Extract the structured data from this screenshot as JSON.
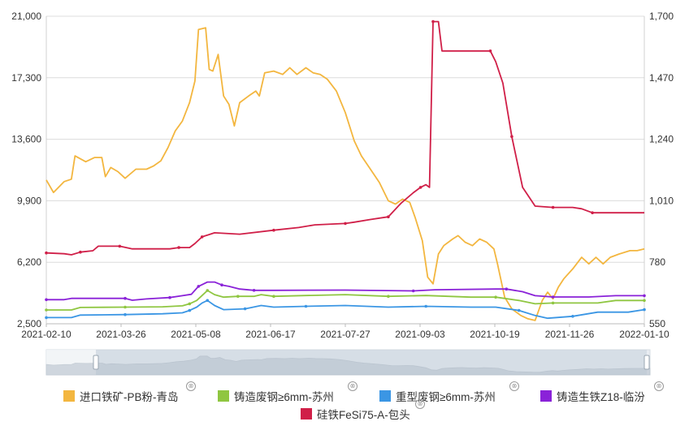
{
  "chart_data": {
    "type": "line",
    "title": "",
    "xlabel": "",
    "x_tick_labels": [
      "2021-02-10",
      "2021-03-26",
      "2021-05-08",
      "2021-06-17",
      "2021-07-27",
      "2021-09-03",
      "2021-10-19",
      "2021-11-26",
      "2022-01-10"
    ],
    "x_range": [
      "2021-02-10",
      "2022-01-10"
    ],
    "y_left": {
      "ylim": [
        2500,
        21000
      ],
      "ticks": [
        "2,500",
        "6,200",
        "9,900",
        "13,600",
        "17,300",
        "21,000"
      ]
    },
    "y_right": {
      "ylim": [
        550,
        1700
      ],
      "ticks": [
        "550",
        "780",
        "1,010",
        "1,240",
        "1,470",
        "1,700"
      ]
    },
    "grid": "horizontal",
    "legend_position": "bottom",
    "series": [
      {
        "name": "进口铁矿-PB粉-青岛",
        "color": "#f3b63f",
        "axis": "left",
        "points": [
          [
            "2021-02-10",
            11150
          ],
          [
            "2021-02-14",
            10400
          ],
          [
            "2021-02-20",
            11050
          ],
          [
            "2021-02-24",
            11200
          ],
          [
            "2021-02-26",
            12600
          ],
          [
            "2021-03-04",
            12250
          ],
          [
            "2021-03-09",
            12500
          ],
          [
            "2021-03-13",
            12500
          ],
          [
            "2021-03-15",
            11350
          ],
          [
            "2021-03-18",
            11900
          ],
          [
            "2021-03-22",
            11650
          ],
          [
            "2021-03-26",
            11250
          ],
          [
            "2021-04-01",
            11800
          ],
          [
            "2021-04-07",
            11800
          ],
          [
            "2021-04-11",
            12000
          ],
          [
            "2021-04-15",
            12300
          ],
          [
            "2021-04-19",
            13100
          ],
          [
            "2021-04-23",
            14100
          ],
          [
            "2021-04-27",
            14700
          ],
          [
            "2021-05-01",
            15800
          ],
          [
            "2021-05-04",
            17100
          ],
          [
            "2021-05-06",
            20200
          ],
          [
            "2021-05-10",
            20300
          ],
          [
            "2021-05-12",
            17800
          ],
          [
            "2021-05-14",
            17700
          ],
          [
            "2021-05-17",
            18700
          ],
          [
            "2021-05-20",
            16200
          ],
          [
            "2021-05-23",
            15700
          ],
          [
            "2021-05-26",
            14400
          ],
          [
            "2021-05-29",
            15800
          ],
          [
            "2021-06-03",
            16200
          ],
          [
            "2021-06-07",
            16500
          ],
          [
            "2021-06-09",
            16200
          ],
          [
            "2021-06-12",
            17600
          ],
          [
            "2021-06-17",
            17700
          ],
          [
            "2021-06-22",
            17500
          ],
          [
            "2021-06-26",
            17900
          ],
          [
            "2021-06-30",
            17500
          ],
          [
            "2021-07-05",
            17900
          ],
          [
            "2021-07-09",
            17600
          ],
          [
            "2021-07-13",
            17500
          ],
          [
            "2021-07-17",
            17200
          ],
          [
            "2021-07-22",
            16500
          ],
          [
            "2021-07-27",
            15200
          ],
          [
            "2021-08-01",
            13500
          ],
          [
            "2021-08-05",
            12600
          ],
          [
            "2021-08-10",
            11800
          ],
          [
            "2021-08-15",
            11000
          ],
          [
            "2021-08-20",
            9900
          ],
          [
            "2021-08-24",
            9700
          ],
          [
            "2021-08-28",
            10000
          ],
          [
            "2021-09-01",
            9800
          ],
          [
            "2021-09-04",
            8900
          ],
          [
            "2021-09-08",
            7500
          ],
          [
            "2021-09-11",
            5300
          ],
          [
            "2021-09-14",
            4900
          ],
          [
            "2021-09-17",
            6700
          ],
          [
            "2021-09-20",
            7200
          ],
          [
            "2021-09-25",
            7600
          ],
          [
            "2021-09-28",
            7800
          ],
          [
            "2021-10-02",
            7400
          ],
          [
            "2021-10-06",
            7200
          ],
          [
            "2021-10-10",
            7600
          ],
          [
            "2021-10-14",
            7400
          ],
          [
            "2021-10-18",
            7000
          ],
          [
            "2021-10-20",
            6100
          ],
          [
            "2021-10-24",
            4100
          ],
          [
            "2021-10-28",
            3400
          ],
          [
            "2021-11-02",
            3000
          ],
          [
            "2021-11-06",
            2800
          ],
          [
            "2021-11-10",
            2700
          ],
          [
            "2021-11-14",
            3900
          ],
          [
            "2021-11-17",
            4400
          ],
          [
            "2021-11-20",
            4000
          ],
          [
            "2021-11-23",
            4700
          ],
          [
            "2021-11-26",
            5200
          ],
          [
            "2021-12-01",
            5800
          ],
          [
            "2021-12-06",
            6500
          ],
          [
            "2021-12-10",
            6100
          ],
          [
            "2021-12-14",
            6500
          ],
          [
            "2021-12-18",
            6100
          ],
          [
            "2021-12-22",
            6500
          ],
          [
            "2021-12-27",
            6700
          ],
          [
            "2022-01-02",
            6900
          ],
          [
            "2022-01-06",
            6900
          ],
          [
            "2022-01-10",
            7000
          ]
        ]
      },
      {
        "name": "铸造废钢≥6mm-苏州",
        "color": "#8fc641",
        "axis": "left",
        "points": [
          [
            "2021-02-10",
            3330
          ],
          [
            "2021-02-24",
            3330
          ],
          [
            "2021-03-01",
            3480
          ],
          [
            "2021-03-26",
            3500
          ],
          [
            "2021-04-16",
            3520
          ],
          [
            "2021-04-27",
            3580
          ],
          [
            "2021-05-01",
            3700
          ],
          [
            "2021-05-05",
            3900
          ],
          [
            "2021-05-08",
            4200
          ],
          [
            "2021-05-11",
            4500
          ],
          [
            "2021-05-15",
            4250
          ],
          [
            "2021-05-20",
            4100
          ],
          [
            "2021-05-28",
            4150
          ],
          [
            "2021-06-06",
            4150
          ],
          [
            "2021-06-10",
            4250
          ],
          [
            "2021-06-17",
            4150
          ],
          [
            "2021-07-05",
            4200
          ],
          [
            "2021-07-27",
            4250
          ],
          [
            "2021-08-20",
            4150
          ],
          [
            "2021-09-10",
            4200
          ],
          [
            "2021-10-05",
            4100
          ],
          [
            "2021-10-19",
            4100
          ],
          [
            "2021-11-01",
            3900
          ],
          [
            "2021-11-10",
            3700
          ],
          [
            "2021-11-20",
            3750
          ],
          [
            "2021-12-15",
            3750
          ],
          [
            "2021-12-25",
            3900
          ],
          [
            "2022-01-10",
            3900
          ]
        ]
      },
      {
        "name": "重型废钢≥6mm-苏州",
        "color": "#3b96e4",
        "axis": "left",
        "points": [
          [
            "2021-02-10",
            2870
          ],
          [
            "2021-02-24",
            2870
          ],
          [
            "2021-03-01",
            3020
          ],
          [
            "2021-03-26",
            3050
          ],
          [
            "2021-04-16",
            3100
          ],
          [
            "2021-04-27",
            3160
          ],
          [
            "2021-05-01",
            3300
          ],
          [
            "2021-05-05",
            3500
          ],
          [
            "2021-05-08",
            3750
          ],
          [
            "2021-05-11",
            3900
          ],
          [
            "2021-05-15",
            3600
          ],
          [
            "2021-05-20",
            3350
          ],
          [
            "2021-06-01",
            3400
          ],
          [
            "2021-06-10",
            3600
          ],
          [
            "2021-06-17",
            3500
          ],
          [
            "2021-07-05",
            3550
          ],
          [
            "2021-07-27",
            3600
          ],
          [
            "2021-08-20",
            3500
          ],
          [
            "2021-09-10",
            3550
          ],
          [
            "2021-10-05",
            3500
          ],
          [
            "2021-10-19",
            3500
          ],
          [
            "2021-11-01",
            3300
          ],
          [
            "2021-11-10",
            3000
          ],
          [
            "2021-11-17",
            2830
          ],
          [
            "2021-12-01",
            2950
          ],
          [
            "2021-12-15",
            3200
          ],
          [
            "2022-01-01",
            3200
          ],
          [
            "2022-01-10",
            3350
          ]
        ]
      },
      {
        "name": "铸造生铁Z18-临汾",
        "color": "#8a22d8",
        "axis": "right",
        "points": [
          [
            "2021-02-10",
            640
          ],
          [
            "2021-02-20",
            640
          ],
          [
            "2021-02-24",
            645
          ],
          [
            "2021-03-26",
            645
          ],
          [
            "2021-03-30",
            638
          ],
          [
            "2021-04-07",
            643
          ],
          [
            "2021-04-20",
            648
          ],
          [
            "2021-04-27",
            655
          ],
          [
            "2021-05-02",
            660
          ],
          [
            "2021-05-06",
            690
          ],
          [
            "2021-05-11",
            706
          ],
          [
            "2021-05-15",
            706
          ],
          [
            "2021-05-19",
            695
          ],
          [
            "2021-05-23",
            690
          ],
          [
            "2021-05-29",
            680
          ],
          [
            "2021-06-06",
            675
          ],
          [
            "2021-06-17",
            675
          ],
          [
            "2021-07-27",
            676
          ],
          [
            "2021-09-03",
            673
          ],
          [
            "2021-09-15",
            677
          ],
          [
            "2021-10-19",
            680
          ],
          [
            "2021-10-25",
            680
          ],
          [
            "2021-11-03",
            670
          ],
          [
            "2021-11-10",
            655
          ],
          [
            "2021-11-20",
            650
          ],
          [
            "2021-12-10",
            650
          ],
          [
            "2021-12-25",
            655
          ],
          [
            "2022-01-10",
            655
          ]
        ]
      },
      {
        "name": "硅铁FeSi75-A-包头",
        "color": "#d01f48",
        "axis": "right",
        "points": [
          [
            "2021-02-10",
            815
          ],
          [
            "2021-02-20",
            812
          ],
          [
            "2021-02-24",
            808
          ],
          [
            "2021-03-01",
            818
          ],
          [
            "2021-03-08",
            823
          ],
          [
            "2021-03-11",
            840
          ],
          [
            "2021-03-23",
            840
          ],
          [
            "2021-03-30",
            830
          ],
          [
            "2021-04-20",
            830
          ],
          [
            "2021-04-25",
            835
          ],
          [
            "2021-05-01",
            835
          ],
          [
            "2021-05-04",
            850
          ],
          [
            "2021-05-08",
            875
          ],
          [
            "2021-05-15",
            890
          ],
          [
            "2021-05-29",
            885
          ],
          [
            "2021-06-17",
            900
          ],
          [
            "2021-07-01",
            910
          ],
          [
            "2021-07-10",
            920
          ],
          [
            "2021-07-27",
            925
          ],
          [
            "2021-08-01",
            930
          ],
          [
            "2021-08-10",
            940
          ],
          [
            "2021-08-20",
            950
          ],
          [
            "2021-08-27",
            1000
          ],
          [
            "2021-09-03",
            1040
          ],
          [
            "2021-09-07",
            1060
          ],
          [
            "2021-09-10",
            1070
          ],
          [
            "2021-09-12",
            1060
          ],
          [
            "2021-09-14",
            1680
          ],
          [
            "2021-09-17",
            1680
          ],
          [
            "2021-09-19",
            1570
          ],
          [
            "2021-10-16",
            1570
          ],
          [
            "2021-10-19",
            1530
          ],
          [
            "2021-10-23",
            1450
          ],
          [
            "2021-10-28",
            1250
          ],
          [
            "2021-11-03",
            1060
          ],
          [
            "2021-11-10",
            990
          ],
          [
            "2021-11-20",
            985
          ],
          [
            "2021-12-01",
            985
          ],
          [
            "2021-12-06",
            980
          ],
          [
            "2021-12-12",
            965
          ],
          [
            "2022-01-10",
            965
          ]
        ]
      }
    ]
  },
  "legend": [
    {
      "label": "进口铁矿-PB粉-青岛",
      "color": "#f3b63f"
    },
    {
      "label": "铸造废钢≥6mm-苏州",
      "color": "#8fc641"
    },
    {
      "label": "重型废钢≥6mm-苏州",
      "color": "#3b96e4"
    },
    {
      "label": "铸造生铁Z18-临汾",
      "color": "#8a22d8"
    },
    {
      "label": "硅铁FeSi75-A-包头",
      "color": "#d01f48"
    }
  ],
  "legend_close_icon": "⊗"
}
